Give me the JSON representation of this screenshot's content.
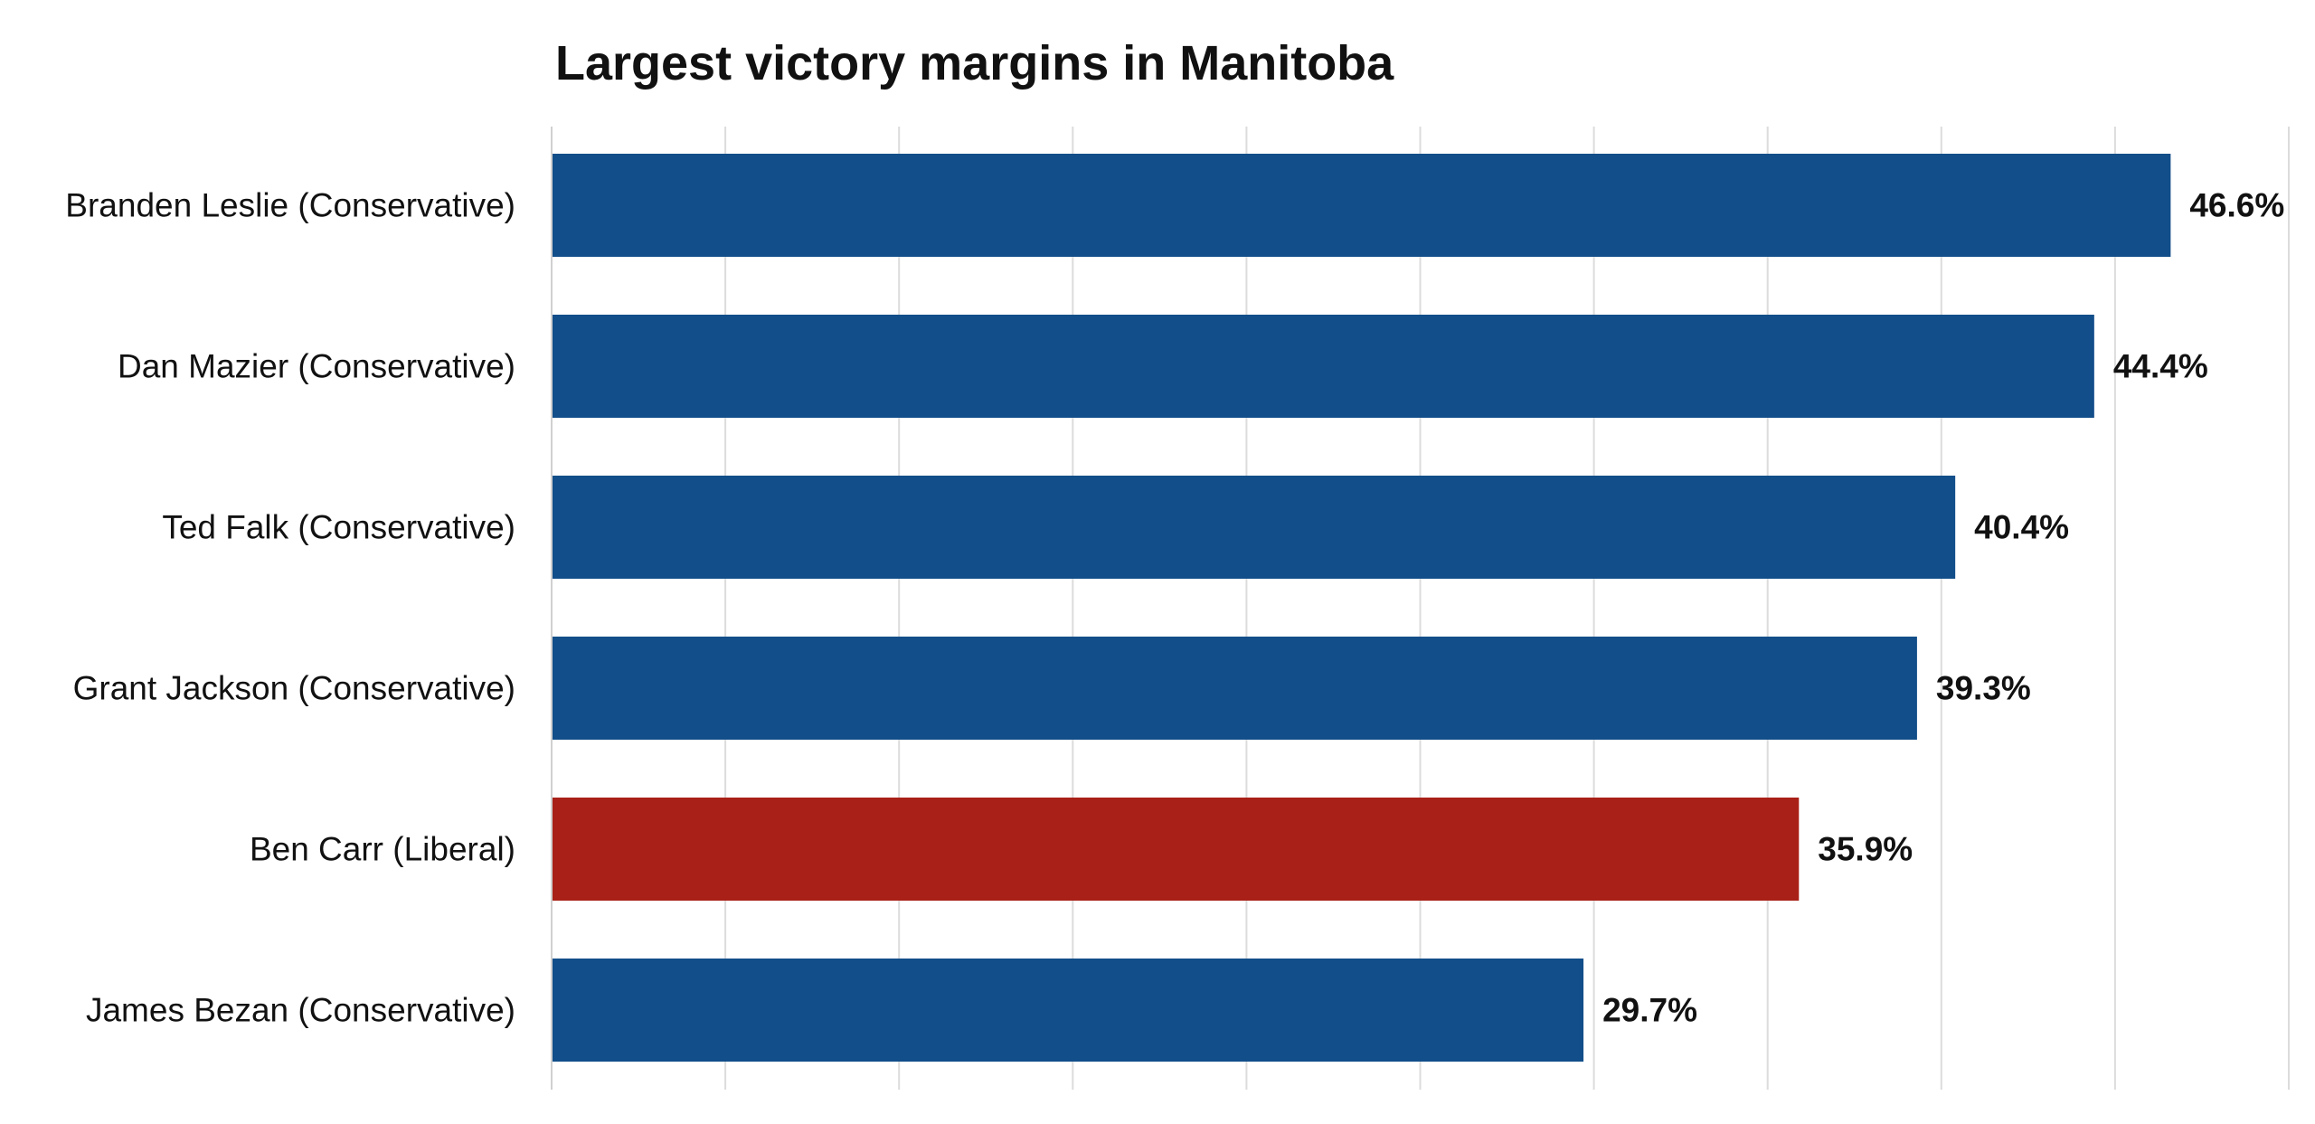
{
  "chart_data": {
    "type": "bar",
    "orientation": "horizontal",
    "title": "Largest victory margins in Manitoba",
    "xlabel": "",
    "ylabel": "",
    "categories": [
      "Branden Leslie (Conservative)",
      "Dan Mazier (Conservative)",
      "Ted Falk (Conservative)",
      "Grant Jackson (Conservative)",
      "Ben Carr (Liberal)",
      "James Bezan (Conservative)"
    ],
    "values": [
      46.6,
      44.4,
      40.4,
      39.3,
      35.9,
      29.7
    ],
    "value_labels": [
      "46.6%",
      "44.4%",
      "40.4%",
      "39.3%",
      "35.9%",
      "29.7%"
    ],
    "party": [
      "Conservative",
      "Conservative",
      "Conservative",
      "Conservative",
      "Liberal",
      "Conservative"
    ],
    "xlim": [
      0,
      50
    ],
    "grid": true,
    "legend": "none",
    "colors": {
      "Conservative": "#124e89",
      "Liberal": "#a82017"
    }
  }
}
